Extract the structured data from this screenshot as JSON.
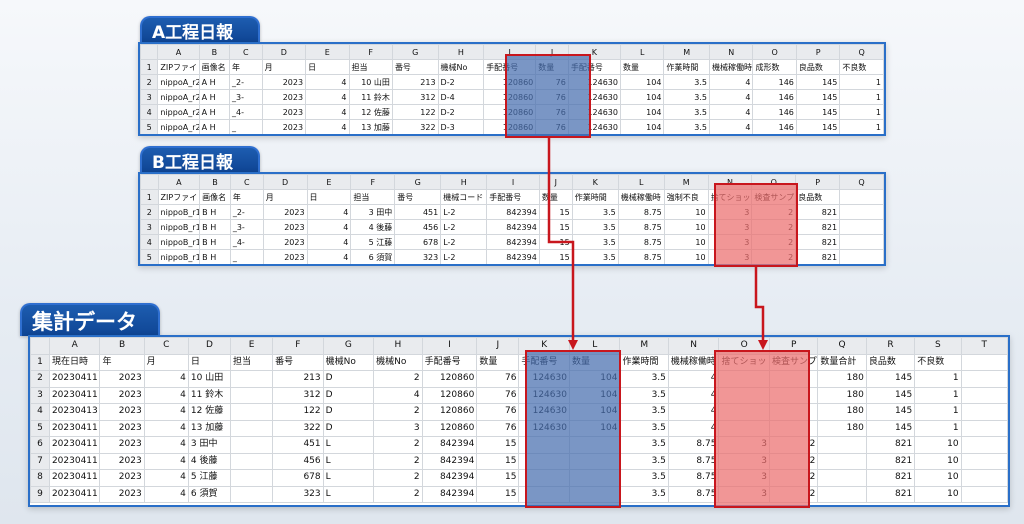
{
  "titles": {
    "a": "A工程日報",
    "b": "B工程日報",
    "summary": "集計データ"
  },
  "colors": {
    "tag_blue": "#1450a3",
    "frame_blue": "#2a6fc8",
    "highlight_red": "#c8161d",
    "fill_blue": "#4d74b4",
    "fill_red": "#ee7373"
  },
  "sheet_a": {
    "col_headers": [
      "",
      "A",
      "B",
      "C",
      "D",
      "E",
      "F",
      "G",
      "H",
      "I",
      "J",
      "K",
      "L",
      "M",
      "N",
      "O",
      "P",
      "Q"
    ],
    "rows": [
      [
        "1",
        "ZIPファイ",
        "画像名",
        "年",
        "月",
        "日",
        "担当",
        "番号",
        "機械No",
        "手配番号",
        "数量",
        "手配番号",
        "数量",
        "作業時間",
        "機械稼働時",
        "成形数",
        "良品数",
        "不良数"
      ],
      [
        "2",
        "nippoA_r2",
        "A H",
        "_2-",
        "2023",
        "4",
        "10 山田",
        "213",
        "D-2",
        "120860",
        "76",
        "124630",
        "104",
        "3.5",
        "4",
        "146",
        "145",
        "1"
      ],
      [
        "3",
        "nippoA_r2",
        "A H",
        "_3-",
        "2023",
        "4",
        "11 鈴木",
        "312",
        "D-4",
        "120860",
        "76",
        "124630",
        "104",
        "3.5",
        "4",
        "146",
        "145",
        "1"
      ],
      [
        "4",
        "nippoA_r2",
        "A H",
        "_4-",
        "2023",
        "4",
        "12 佐藤",
        "122",
        "D-2",
        "120860",
        "76",
        "124630",
        "104",
        "3.5",
        "4",
        "146",
        "145",
        "1"
      ],
      [
        "5",
        "nippoA_r2",
        "A H",
        "_",
        "2023",
        "4",
        "13 加藤",
        "322",
        "D-3",
        "120860",
        "76",
        "124630",
        "104",
        "3.5",
        "4",
        "146",
        "145",
        "1"
      ]
    ]
  },
  "sheet_b": {
    "col_headers": [
      "",
      "A",
      "B",
      "C",
      "D",
      "E",
      "F",
      "G",
      "H",
      "I",
      "J",
      "K",
      "L",
      "M",
      "N",
      "O",
      "P",
      "Q"
    ],
    "rows": [
      [
        "1",
        "ZIPファイ",
        "画像名",
        "年",
        "月",
        "日",
        "担当",
        "番号",
        "機械コード",
        "手配番号",
        "数量",
        "作業時間",
        "機械稼働時",
        "強制不良",
        "捨てショット",
        "検査サンプ",
        "良品数",
        ""
      ],
      [
        "2",
        "nippoB_r1",
        "B H",
        "_2-",
        "2023",
        "4",
        "3 田中",
        "451",
        "L-2",
        "842394",
        "15",
        "3.5",
        "8.75",
        "10",
        "3",
        "2",
        "821",
        ""
      ],
      [
        "3",
        "nippoB_r1",
        "B H",
        "_3-",
        "2023",
        "4",
        "4 後藤",
        "456",
        "L-2",
        "842394",
        "15",
        "3.5",
        "8.75",
        "10",
        "3",
        "2",
        "821",
        ""
      ],
      [
        "4",
        "nippoB_r1",
        "B H",
        "_4-",
        "2023",
        "4",
        "5 江藤",
        "678",
        "L-2",
        "842394",
        "15",
        "3.5",
        "8.75",
        "10",
        "3",
        "2",
        "821",
        ""
      ],
      [
        "5",
        "nippoB_r1",
        "B H",
        "_",
        "2023",
        "4",
        "6 須賀",
        "323",
        "L-2",
        "842394",
        "15",
        "3.5",
        "8.75",
        "10",
        "3",
        "2",
        "821",
        ""
      ]
    ]
  },
  "sheet_summary": {
    "col_headers": [
      "",
      "A",
      "B",
      "C",
      "D",
      "E",
      "F",
      "G",
      "H",
      "I",
      "J",
      "K",
      "L",
      "M",
      "N",
      "O",
      "P",
      "Q",
      "R",
      "S",
      "T"
    ],
    "rows": [
      [
        "1",
        "現在日時",
        "年",
        "月",
        "日",
        "担当",
        "番号",
        "機械No",
        "機械No",
        "手配番号",
        "数量",
        "手配番号",
        "数量",
        "作業時間",
        "機械稼働時",
        "捨てショット",
        "検査サンプ",
        "数量合計",
        "良品数",
        "不良数",
        ""
      ],
      [
        "2",
        "20230411",
        "2023",
        "4",
        "10 山田",
        "",
        "213",
        "D",
        "2",
        "120860",
        "76",
        "124630",
        "104",
        "3.5",
        "4",
        "",
        "",
        "180",
        "145",
        "1",
        ""
      ],
      [
        "3",
        "20230411",
        "2023",
        "4",
        "11 鈴木",
        "",
        "312",
        "D",
        "4",
        "120860",
        "76",
        "124630",
        "104",
        "3.5",
        "4",
        "",
        "",
        "180",
        "145",
        "1",
        ""
      ],
      [
        "4",
        "20230413",
        "2023",
        "4",
        "12 佐藤",
        "",
        "122",
        "D",
        "2",
        "120860",
        "76",
        "124630",
        "104",
        "3.5",
        "4",
        "",
        "",
        "180",
        "145",
        "1",
        ""
      ],
      [
        "5",
        "20230411",
        "2023",
        "4",
        "13 加藤",
        "",
        "322",
        "D",
        "3",
        "120860",
        "76",
        "124630",
        "104",
        "3.5",
        "4",
        "",
        "",
        "180",
        "145",
        "1",
        ""
      ],
      [
        "6",
        "20230411",
        "2023",
        "4",
        "3 田中",
        "",
        "451",
        "L",
        "2",
        "842394",
        "15",
        "",
        "",
        "3.5",
        "8.75",
        "3",
        "2",
        "",
        "821",
        "10",
        ""
      ],
      [
        "7",
        "20230411",
        "2023",
        "4",
        "4 後藤",
        "",
        "456",
        "L",
        "2",
        "842394",
        "15",
        "",
        "",
        "3.5",
        "8.75",
        "3",
        "2",
        "",
        "821",
        "10",
        ""
      ],
      [
        "8",
        "20230411",
        "2023",
        "4",
        "5 江藤",
        "",
        "678",
        "L",
        "2",
        "842394",
        "15",
        "",
        "",
        "3.5",
        "8.75",
        "3",
        "2",
        "",
        "821",
        "10",
        ""
      ],
      [
        "9",
        "20230411",
        "2023",
        "4",
        "6 須賀",
        "",
        "323",
        "L",
        "2",
        "842394",
        "15",
        "",
        "",
        "3.5",
        "8.75",
        "3",
        "2",
        "",
        "821",
        "10",
        ""
      ]
    ]
  }
}
